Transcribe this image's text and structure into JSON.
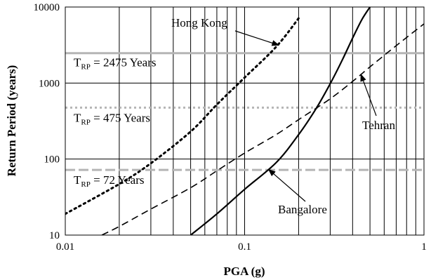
{
  "chart_data": {
    "type": "line",
    "title": "",
    "xlabel": "PGA (g)",
    "ylabel": "Return Period (years)",
    "xscale": "log",
    "yscale": "log",
    "xlim": [
      0.01,
      1
    ],
    "ylim": [
      10,
      10000
    ],
    "xticks": [
      "0.01",
      "0.1",
      "1"
    ],
    "yticks": [
      "10",
      "100",
      "1000",
      "10000"
    ],
    "grid": true,
    "legend": "none",
    "series": [
      {
        "name": "Hong Kong",
        "style": "dotted",
        "color": "#000000",
        "points": [
          [
            0.01,
            19
          ],
          [
            0.02,
            47
          ],
          [
            0.03,
            88
          ],
          [
            0.05,
            230
          ],
          [
            0.07,
            520
          ],
          [
            0.1,
            1180
          ],
          [
            0.15,
            3000
          ],
          [
            0.2,
            7100
          ]
        ]
      },
      {
        "name": "Bangalore",
        "style": "solid",
        "color": "#000000",
        "points": [
          [
            0.05,
            10
          ],
          [
            0.07,
            19
          ],
          [
            0.1,
            40
          ],
          [
            0.15,
            90
          ],
          [
            0.2,
            210
          ],
          [
            0.25,
            460
          ],
          [
            0.3,
            980
          ],
          [
            0.35,
            2000
          ],
          [
            0.4,
            3900
          ],
          [
            0.45,
            6800
          ],
          [
            0.5,
            10000
          ]
        ]
      },
      {
        "name": "Tehran",
        "style": "dashed",
        "color": "#000000",
        "points": [
          [
            0.016,
            10
          ],
          [
            0.02,
            13
          ],
          [
            0.03,
            22
          ],
          [
            0.05,
            42
          ],
          [
            0.07,
            70
          ],
          [
            0.1,
            120
          ],
          [
            0.15,
            210
          ],
          [
            0.2,
            330
          ],
          [
            0.3,
            620
          ],
          [
            0.4,
            1050
          ],
          [
            0.5,
            1630
          ],
          [
            0.7,
            3100
          ],
          [
            1.0,
            6000
          ]
        ]
      }
    ],
    "reference_lines": [
      {
        "label_T": "T",
        "label_sub": "RP",
        "label_rest": " = 2475 Years",
        "value": 2475,
        "style": "solid",
        "color": "#b5b5b5"
      },
      {
        "label_T": "T",
        "label_sub": "RP",
        "label_rest": " = 475 Years",
        "value": 475,
        "style": "dotted",
        "color": "#b5b5b5"
      },
      {
        "label_T": "T",
        "label_sub": "RP",
        "label_rest": " = 72 Years",
        "value": 72,
        "style": "dashed",
        "color": "#b5b5b5"
      }
    ],
    "annotations": [
      {
        "text": "Hong Kong",
        "series": "Hong Kong"
      },
      {
        "text": "Tehran",
        "series": "Tehran"
      },
      {
        "text": "Bangalore",
        "series": "Bangalore"
      }
    ]
  }
}
